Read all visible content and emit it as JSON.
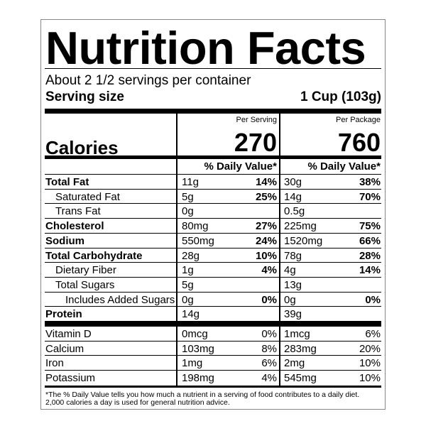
{
  "title": "Nutrition Facts",
  "servings": "About 2 1/2 servings per container",
  "serving_size": {
    "label": "Serving size",
    "value": "1 Cup (103g)"
  },
  "columns": [
    "Per Serving",
    "Per Package"
  ],
  "calories": {
    "label": "Calories",
    "values": [
      "270",
      "760"
    ]
  },
  "dv_header": [
    "% Daily Value*",
    "% Daily Value*"
  ],
  "nutrients": [
    {
      "name": "Total Fat",
      "bold": true,
      "indent": 0,
      "serving": [
        "11g",
        "14%"
      ],
      "package": [
        "30g",
        "38%"
      ]
    },
    {
      "name": "Saturated Fat",
      "bold": false,
      "indent": 1,
      "serving": [
        "5g",
        "25%"
      ],
      "package": [
        "14g",
        "70%"
      ]
    },
    {
      "name": "Trans Fat",
      "bold": false,
      "indent": 1,
      "serving": [
        "0g"
      ],
      "package": [
        "0.5g"
      ]
    },
    {
      "name": "Cholesterol",
      "bold": true,
      "indent": 0,
      "serving": [
        "80mg",
        "27%"
      ],
      "package": [
        "225mg",
        "75%"
      ]
    },
    {
      "name": "Sodium",
      "bold": true,
      "indent": 0,
      "serving": [
        "550mg",
        "24%"
      ],
      "package": [
        "1520mg",
        "66%"
      ]
    },
    {
      "name": "Total Carbohydrate",
      "bold": true,
      "indent": 0,
      "serving": [
        "28g",
        "10%"
      ],
      "package": [
        "78g",
        "28%"
      ]
    },
    {
      "name": "Dietary Fiber",
      "bold": false,
      "indent": 1,
      "serving": [
        "1g",
        "4%"
      ],
      "package": [
        "4g",
        "14%"
      ]
    },
    {
      "name": "Total Sugars",
      "bold": false,
      "indent": 1,
      "serving": [
        "5g"
      ],
      "package": [
        "13g"
      ]
    },
    {
      "name": "Includes Added Sugars",
      "bold": false,
      "indent": 2,
      "serving": [
        "0g",
        "0%"
      ],
      "package": [
        "0g",
        "0%"
      ]
    },
    {
      "name": "Protein",
      "bold": true,
      "indent": 0,
      "serving": [
        "14g"
      ],
      "package": [
        "39g"
      ]
    }
  ],
  "vitamins": [
    {
      "name": "Vitamin D",
      "serving": [
        "0mcg",
        "0%"
      ],
      "package": [
        "1mcg",
        "6%"
      ]
    },
    {
      "name": "Calcium",
      "serving": [
        "103mg",
        "8%"
      ],
      "package": [
        "283mg",
        "20%"
      ]
    },
    {
      "name": "Iron",
      "serving": [
        "1mg",
        "6%"
      ],
      "package": [
        "2mg",
        "10%"
      ]
    },
    {
      "name": "Potassium",
      "serving": [
        "198mg",
        "4%"
      ],
      "package": [
        "545mg",
        "10%"
      ]
    }
  ],
  "footnote": [
    "*The % Daily Value tells you how much a nutrient in a serving of food contributes to a daily diet.",
    "2,000 calories a day is used for general nutrition advice."
  ]
}
